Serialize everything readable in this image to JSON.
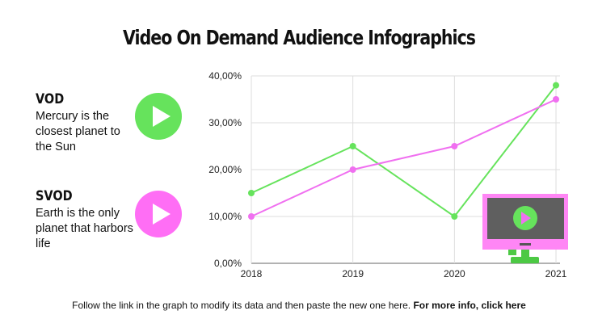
{
  "title": "Video On Demand Audience Infographics",
  "items": [
    {
      "heading": "VOD",
      "text": "Mercury is the closest planet to the Sun",
      "color": "#66e35c",
      "icon": "play-icon"
    },
    {
      "heading": "SVOD",
      "text": "Earth is the only planet that harbors life",
      "color": "#ff6ef5",
      "icon": "play-icon"
    }
  ],
  "footer": {
    "text": "Follow the link in the graph to modify its data and then paste the new one here.",
    "link": "For more info, click here"
  },
  "chart_data": {
    "type": "line",
    "categories": [
      "2018",
      "2019",
      "2020",
      "2021"
    ],
    "yticks": [
      "0,00%",
      "10,00%",
      "20,00%",
      "30,00%",
      "40,00%"
    ],
    "ylim": [
      0,
      40
    ],
    "grid": true,
    "series": [
      {
        "values": [
          15,
          25,
          10,
          38
        ],
        "color": "#66e35c"
      },
      {
        "values": [
          10,
          20,
          25,
          35
        ],
        "color": "#f070f0"
      }
    ]
  }
}
